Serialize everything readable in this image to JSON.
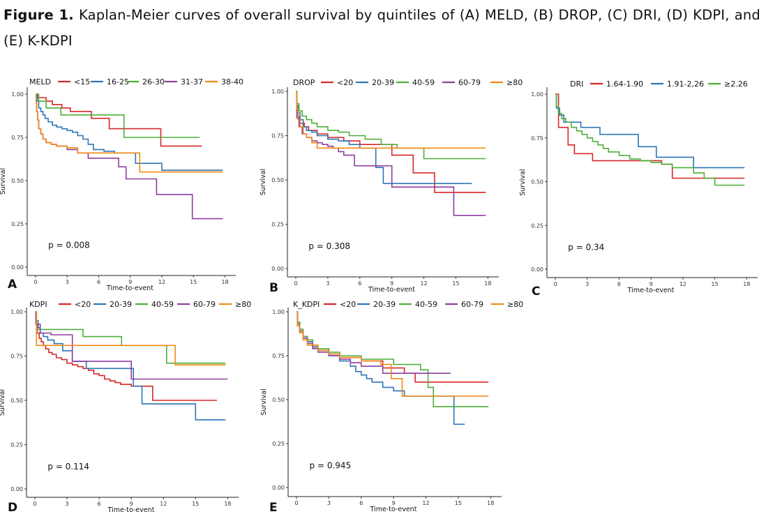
{
  "caption": {
    "label": "Figure 1.",
    "text": " Kaplan-Meier curves of overall survival by quintiles of (A) MELD, (B) DROP, (C) DRI, (D) KDPI, and (E) K-KDPI"
  },
  "colors": {
    "c1": "#d62728",
    "c2": "#2e75b6",
    "c3": "#4caf3a",
    "c4": "#8e3ea0",
    "c5": "#f08a14"
  },
  "chart_data": [
    {
      "panel": "A",
      "type": "line",
      "legend_title": "MELD",
      "legend_position": "top",
      "xlabel": "Time-to-event",
      "ylabel": "Survival",
      "xlim": [
        0,
        18.5
      ],
      "ylim": [
        0,
        1
      ],
      "xticks": [
        0,
        3,
        6,
        9,
        12,
        15,
        18
      ],
      "yticks": [
        0,
        0.25,
        0.5,
        0.75,
        1.0
      ],
      "ytick_labels": [
        "0.00",
        "0.25",
        "0.50",
        "0.75",
        "1.00"
      ],
      "pvalue": "p = 0.008",
      "grid": false,
      "series": [
        {
          "name": "<15",
          "color_key": "c1",
          "x": [
            0,
            0.2,
            1.0,
            1.6,
            2.5,
            3.3,
            5.3,
            7.0,
            11.9,
            15.8
          ],
          "y": [
            1,
            0.98,
            0.96,
            0.94,
            0.92,
            0.9,
            0.86,
            0.8,
            0.7,
            0.7
          ]
        },
        {
          "name": "16-25",
          "color_key": "c2",
          "x": [
            0,
            0.15,
            0.3,
            0.5,
            0.7,
            0.9,
            1.2,
            1.6,
            2.0,
            2.5,
            3.0,
            3.5,
            4.0,
            4.5,
            5.0,
            5.5,
            6.5,
            7.5,
            9.5,
            12.0,
            17.8
          ],
          "y": [
            1,
            0.96,
            0.92,
            0.9,
            0.88,
            0.86,
            0.84,
            0.82,
            0.81,
            0.8,
            0.79,
            0.78,
            0.76,
            0.74,
            0.71,
            0.68,
            0.67,
            0.66,
            0.6,
            0.56,
            0.56
          ]
        },
        {
          "name": "26-30",
          "color_key": "c3",
          "x": [
            0,
            0.3,
            1.0,
            2.4,
            8.4,
            15.6
          ],
          "y": [
            1,
            0.96,
            0.92,
            0.88,
            0.75,
            0.75
          ]
        },
        {
          "name": "31-37",
          "color_key": "c4",
          "x": [
            0,
            0.05,
            0.1,
            0.2,
            0.3,
            0.5,
            0.7,
            1.0,
            1.5,
            2.0,
            3.0,
            4.0,
            5.0,
            7.9,
            8.6,
            11.5,
            14.9,
            17.8
          ],
          "y": [
            1,
            0.95,
            0.9,
            0.85,
            0.8,
            0.77,
            0.74,
            0.72,
            0.71,
            0.7,
            0.68,
            0.66,
            0.63,
            0.58,
            0.51,
            0.42,
            0.28,
            0.28
          ]
        },
        {
          "name": "38-40",
          "color_key": "c5",
          "x": [
            0,
            0.05,
            0.1,
            0.2,
            0.3,
            0.5,
            0.7,
            1.0,
            1.5,
            2.0,
            3.0,
            4.0,
            9.9,
            17.8
          ],
          "y": [
            1,
            0.95,
            0.9,
            0.85,
            0.8,
            0.77,
            0.74,
            0.72,
            0.71,
            0.7,
            0.69,
            0.66,
            0.55,
            0.55
          ]
        }
      ]
    },
    {
      "panel": "B",
      "type": "line",
      "legend_title": "DROP",
      "legend_position": "top",
      "xlabel": "Time-to-event",
      "ylabel": "Survival",
      "xlim": [
        0,
        18.5
      ],
      "ylim": [
        0,
        1
      ],
      "xticks": [
        0,
        3,
        6,
        9,
        12,
        15,
        18
      ],
      "yticks": [
        0,
        0.25,
        0.5,
        0.75,
        1.0
      ],
      "ytick_labels": [
        "0.00",
        "0.25",
        "0.50",
        "0.75",
        "1.00"
      ],
      "pvalue": "p = 0.308",
      "grid": false,
      "series": [
        {
          "name": "<20",
          "color_key": "c1",
          "x": [
            0,
            0.1,
            0.2,
            0.4,
            0.8,
            1.2,
            2.0,
            3.0,
            4.5,
            6.0,
            9.0,
            11.0,
            13.0,
            17.8
          ],
          "y": [
            1,
            0.9,
            0.86,
            0.82,
            0.8,
            0.78,
            0.76,
            0.74,
            0.72,
            0.7,
            0.64,
            0.54,
            0.43,
            0.43
          ]
        },
        {
          "name": "20-39",
          "color_key": "c2",
          "x": [
            0,
            0.1,
            0.2,
            0.4,
            0.7,
            1.0,
            1.5,
            2.0,
            3.0,
            4.0,
            5.0,
            6.0,
            7.5,
            8.2,
            16.5
          ],
          "y": [
            1,
            0.92,
            0.88,
            0.84,
            0.8,
            0.78,
            0.77,
            0.75,
            0.73,
            0.72,
            0.7,
            0.68,
            0.57,
            0.48,
            0.48
          ]
        },
        {
          "name": "40-59",
          "color_key": "c3",
          "x": [
            0,
            0.1,
            0.3,
            0.6,
            1.0,
            1.5,
            2.0,
            3.0,
            4.0,
            5.0,
            6.5,
            8.0,
            9.5,
            12.0,
            17.8
          ],
          "y": [
            1,
            0.93,
            0.89,
            0.86,
            0.84,
            0.82,
            0.8,
            0.78,
            0.77,
            0.75,
            0.73,
            0.7,
            0.68,
            0.62,
            0.62
          ]
        },
        {
          "name": "60-79",
          "color_key": "c4",
          "x": [
            0,
            0.1,
            0.3,
            0.6,
            1.0,
            1.5,
            2.0,
            2.5,
            3.0,
            3.5,
            4.0,
            4.5,
            5.5,
            7.5,
            9.0,
            13.0,
            14.8,
            17.8
          ],
          "y": [
            1,
            0.85,
            0.8,
            0.76,
            0.74,
            0.72,
            0.71,
            0.7,
            0.69,
            0.68,
            0.66,
            0.64,
            0.58,
            0.58,
            0.46,
            0.46,
            0.3,
            0.3
          ]
        },
        {
          "name": "≥80",
          "color_key": "c5",
          "x": [
            0,
            0.1,
            0.2,
            0.4,
            0.7,
            1.0,
            1.5,
            2.0,
            17.8
          ],
          "y": [
            1,
            0.9,
            0.84,
            0.8,
            0.76,
            0.74,
            0.71,
            0.68,
            0.68
          ]
        }
      ]
    },
    {
      "panel": "C",
      "type": "line",
      "legend_title": "DRI",
      "legend_position": "top",
      "xlabel": "Time-to-event",
      "ylabel": "Survival",
      "xlim": [
        0,
        18.5
      ],
      "ylim": [
        0,
        1
      ],
      "xticks": [
        0,
        3,
        6,
        9,
        12,
        15,
        18
      ],
      "yticks": [
        0,
        0.25,
        0.5,
        0.75,
        1.0
      ],
      "ytick_labels": [
        "0.00",
        "0.25",
        "0.50",
        "0.75",
        "1.00"
      ],
      "pvalue": "p = 0.34",
      "grid": false,
      "series": [
        {
          "name": "1.64-1.90",
          "color_key": "c1",
          "x": [
            0,
            0.3,
            1.2,
            1.8,
            3.5,
            10.0,
            11.0,
            17.8
          ],
          "y": [
            1,
            0.81,
            0.71,
            0.66,
            0.62,
            0.6,
            0.52,
            0.52
          ]
        },
        {
          "name": "1.91-2,26",
          "color_key": "c2",
          "x": [
            0,
            0.1,
            0.4,
            0.8,
            2.4,
            4.2,
            7.8,
            9.5,
            11.5,
            13.0,
            17.8
          ],
          "y": [
            1,
            0.92,
            0.88,
            0.84,
            0.81,
            0.77,
            0.7,
            0.64,
            0.64,
            0.58,
            0.58
          ]
        },
        {
          "name": "≥2.26",
          "color_key": "c3",
          "x": [
            0,
            0.1,
            0.3,
            0.6,
            1.0,
            1.5,
            2.0,
            2.5,
            3.0,
            3.5,
            4.0,
            4.5,
            5.0,
            6.0,
            7.0,
            8.0,
            9.0,
            10.0,
            11.0,
            12.0,
            13.0,
            14.0,
            15.0,
            17.8
          ],
          "y": [
            1,
            0.93,
            0.89,
            0.86,
            0.84,
            0.81,
            0.79,
            0.77,
            0.75,
            0.73,
            0.71,
            0.69,
            0.67,
            0.65,
            0.63,
            0.62,
            0.61,
            0.6,
            0.58,
            0.58,
            0.55,
            0.52,
            0.48,
            0.48
          ]
        }
      ]
    },
    {
      "panel": "D",
      "type": "line",
      "legend_title": "KDPI",
      "legend_position": "top",
      "xlabel": "Time-to-event",
      "ylabel": "Survival",
      "xlim": [
        0,
        18.5
      ],
      "ylim": [
        0,
        1
      ],
      "xticks": [
        0,
        3,
        6,
        9,
        12,
        15,
        18
      ],
      "yticks": [
        0,
        0.25,
        0.5,
        0.75,
        1.0
      ],
      "ytick_labels": [
        "0.00",
        "0.25",
        "0.50",
        "0.75",
        "1.00"
      ],
      "pvalue": "p = 0.114",
      "grid": false,
      "series": [
        {
          "name": "<20",
          "color_key": "c1",
          "x": [
            0,
            0.1,
            0.2,
            0.4,
            0.6,
            0.8,
            1.0,
            1.3,
            1.6,
            2.0,
            2.5,
            3.0,
            3.5,
            4.0,
            4.5,
            5.0,
            5.5,
            6.0,
            6.5,
            7.0,
            7.5,
            8.0,
            9.0,
            11.0,
            17.0
          ],
          "y": [
            1,
            0.93,
            0.88,
            0.85,
            0.83,
            0.81,
            0.79,
            0.77,
            0.76,
            0.74,
            0.73,
            0.71,
            0.7,
            0.69,
            0.68,
            0.67,
            0.65,
            0.64,
            0.62,
            0.61,
            0.6,
            0.59,
            0.58,
            0.5,
            0.5
          ]
        },
        {
          "name": "20-39",
          "color_key": "c2",
          "x": [
            0,
            0.1,
            0.3,
            0.5,
            0.8,
            1.2,
            1.8,
            2.6,
            3.5,
            4.8,
            9.2,
            10.0,
            15.0,
            17.8
          ],
          "y": [
            1,
            0.95,
            0.91,
            0.88,
            0.86,
            0.84,
            0.82,
            0.78,
            0.72,
            0.68,
            0.58,
            0.48,
            0.39,
            0.39
          ]
        },
        {
          "name": "40-59",
          "color_key": "c3",
          "x": [
            0,
            0.15,
            1.0,
            4.5,
            8.1,
            12.3,
            17.8
          ],
          "y": [
            1,
            0.9,
            0.9,
            0.86,
            0.81,
            0.71,
            0.71
          ]
        },
        {
          "name": "60-79",
          "color_key": "c4",
          "x": [
            0,
            0.1,
            0.5,
            1.5,
            3.5,
            9.0,
            18.0
          ],
          "y": [
            1,
            0.93,
            0.88,
            0.87,
            0.72,
            0.62,
            0.62
          ]
        },
        {
          "name": "≥80",
          "color_key": "c5",
          "x": [
            0,
            0.15,
            13.1,
            17.8
          ],
          "y": [
            1,
            0.81,
            0.7,
            0.7
          ]
        }
      ]
    },
    {
      "panel": "E",
      "type": "line",
      "legend_title": "K_KDPI",
      "legend_position": "top",
      "xlabel": "Time-to-event",
      "ylabel": "Survival",
      "xlim": [
        0,
        18.5
      ],
      "ylim": [
        0,
        1
      ],
      "xticks": [
        0,
        3,
        6,
        9,
        12,
        15,
        18
      ],
      "yticks": [
        0,
        0.25,
        0.5,
        0.75,
        1.0
      ],
      "ytick_labels": [
        "0.00",
        "0.25",
        "0.50",
        "0.75",
        "1.00"
      ],
      "pvalue": "p = 0.945",
      "grid": false,
      "series": [
        {
          "name": "<20",
          "color_key": "c1",
          "x": [
            0,
            0.1,
            0.3,
            0.6,
            1.0,
            1.5,
            2.0,
            3.0,
            4.0,
            6.0,
            8.0,
            10.0,
            11.0,
            17.8
          ],
          "y": [
            1,
            0.93,
            0.89,
            0.86,
            0.83,
            0.8,
            0.78,
            0.76,
            0.74,
            0.72,
            0.68,
            0.65,
            0.6,
            0.6
          ]
        },
        {
          "name": "20-39",
          "color_key": "c2",
          "x": [
            0,
            0.1,
            0.3,
            0.6,
            1.0,
            1.5,
            2.0,
            3.0,
            4.0,
            5.0,
            5.5,
            6.0,
            6.5,
            7.0,
            8.0,
            9.0,
            10.0,
            11.0,
            14.6,
            15.6
          ],
          "y": [
            1,
            0.94,
            0.9,
            0.86,
            0.83,
            0.8,
            0.78,
            0.75,
            0.72,
            0.69,
            0.66,
            0.64,
            0.62,
            0.6,
            0.57,
            0.55,
            0.52,
            0.52,
            0.36,
            0.36
          ]
        },
        {
          "name": "40-59",
          "color_key": "c3",
          "x": [
            0,
            0.1,
            0.3,
            0.6,
            1.0,
            1.5,
            2.0,
            3.0,
            4.0,
            6.0,
            9.0,
            11.5,
            12.2,
            12.7,
            17.8
          ],
          "y": [
            1,
            0.94,
            0.9,
            0.86,
            0.84,
            0.81,
            0.79,
            0.77,
            0.75,
            0.73,
            0.7,
            0.67,
            0.57,
            0.46,
            0.46
          ]
        },
        {
          "name": "60-79",
          "color_key": "c4",
          "x": [
            0,
            0.1,
            0.3,
            0.6,
            1.0,
            1.5,
            2.0,
            3.0,
            4.0,
            5.0,
            6.0,
            8.0,
            14.3
          ],
          "y": [
            1,
            0.92,
            0.88,
            0.85,
            0.82,
            0.79,
            0.77,
            0.75,
            0.73,
            0.71,
            0.69,
            0.65,
            0.65
          ]
        },
        {
          "name": "≥80",
          "color_key": "c5",
          "x": [
            0,
            0.1,
            0.3,
            0.6,
            1.0,
            2.0,
            3.0,
            4.0,
            6.0,
            7.8,
            8.8,
            9.8,
            17.8
          ],
          "y": [
            1,
            0.92,
            0.88,
            0.84,
            0.81,
            0.78,
            0.76,
            0.74,
            0.72,
            0.7,
            0.62,
            0.52,
            0.52
          ]
        }
      ]
    }
  ]
}
